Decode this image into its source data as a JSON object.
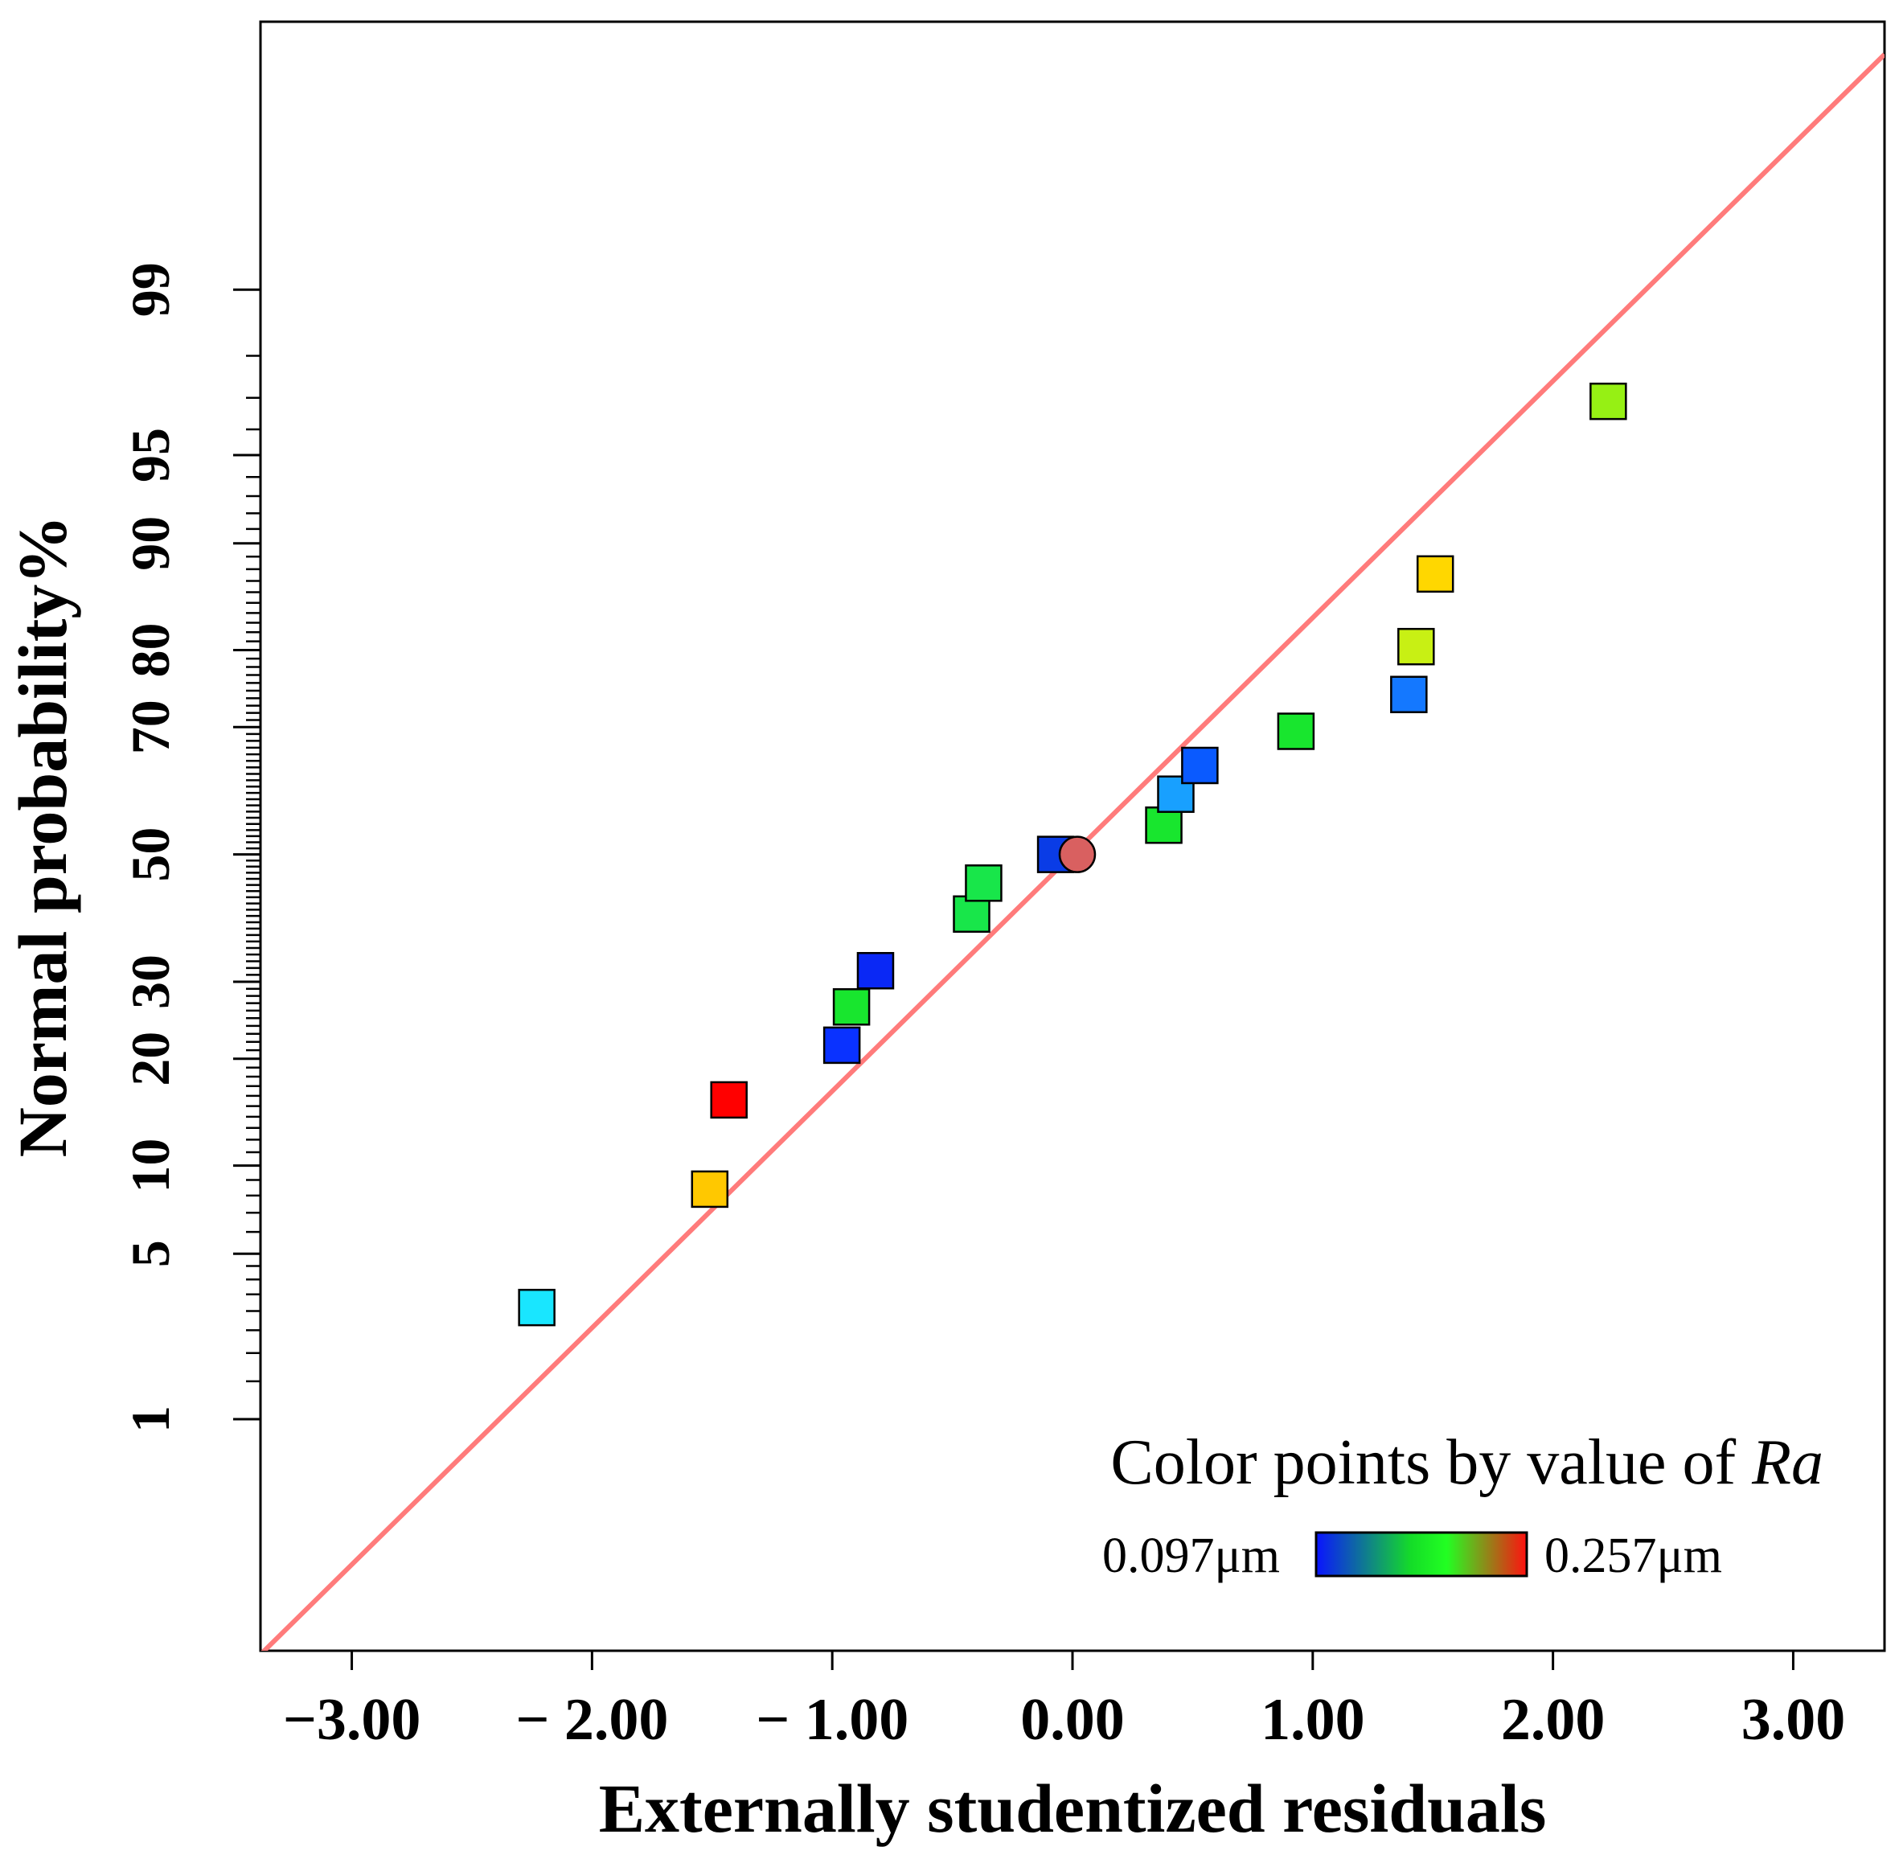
{
  "chart_data": {
    "type": "scatter",
    "title": "",
    "xlabel": "Externally studentized residuals",
    "ylabel": "Normal probability%",
    "xlim": [
      -3.38,
      3.38
    ],
    "ylim_probit": [
      -3.28,
      3.43
    ],
    "x_ticks": [
      {
        "value": -3,
        "label": "−3.00"
      },
      {
        "value": -2,
        "label": "− 2.00"
      },
      {
        "value": -1,
        "label": "− 1.00"
      },
      {
        "value": 0,
        "label": "0.00"
      },
      {
        "value": 1,
        "label": "1.00"
      },
      {
        "value": 2,
        "label": "2.00"
      },
      {
        "value": 3,
        "label": "3.00"
      }
    ],
    "y_ticks": [
      {
        "value": 1,
        "label": "1"
      },
      {
        "value": 5,
        "label": "5"
      },
      {
        "value": 10,
        "label": "10"
      },
      {
        "value": 20,
        "label": "20"
      },
      {
        "value": 30,
        "label": "30"
      },
      {
        "value": 50,
        "label": "50"
      },
      {
        "value": 70,
        "label": "70"
      },
      {
        "value": 80,
        "label": "80"
      },
      {
        "value": 90,
        "label": "90"
      },
      {
        "value": 95,
        "label": "95"
      },
      {
        "value": 99,
        "label": "99"
      }
    ],
    "fit_line": {
      "color": "#ff7b7b",
      "slope": 0.975,
      "intercept": 0.0
    },
    "points": [
      {
        "residual": -2.23,
        "probability": 3.1,
        "color": "#19e6ff",
        "shape": "square"
      },
      {
        "residual": -1.51,
        "probability": 8.4,
        "color": "#ffc800",
        "shape": "square"
      },
      {
        "residual": -1.43,
        "probability": 15.6,
        "color": "#ff0000",
        "shape": "square"
      },
      {
        "residual": -0.96,
        "probability": 21.6,
        "color": "#0a32ff",
        "shape": "square"
      },
      {
        "residual": -0.92,
        "probability": 26.5,
        "color": "#18e62e",
        "shape": "square"
      },
      {
        "residual": -0.82,
        "probability": 31.6,
        "color": "#0a28f5",
        "shape": "square"
      },
      {
        "residual": -0.42,
        "probability": 40.3,
        "color": "#18e64a",
        "shape": "square"
      },
      {
        "residual": -0.37,
        "probability": 45.3,
        "color": "#18e64a",
        "shape": "square"
      },
      {
        "residual": -0.07,
        "probability": 50.0,
        "color": "#0a3ce6",
        "shape": "square"
      },
      {
        "residual": 0.02,
        "probability": 50.0,
        "color": "#d96060",
        "shape": "circle"
      },
      {
        "residual": 0.38,
        "probability": 54.8,
        "color": "#18e62e",
        "shape": "square"
      },
      {
        "residual": 0.43,
        "probability": 59.8,
        "color": "#18a0ff",
        "shape": "square"
      },
      {
        "residual": 0.53,
        "probability": 64.3,
        "color": "#0a5aff",
        "shape": "square"
      },
      {
        "residual": 0.93,
        "probability": 69.4,
        "color": "#18e62e",
        "shape": "square"
      },
      {
        "residual": 1.4,
        "probability": 74.5,
        "color": "#1478ff",
        "shape": "square"
      },
      {
        "residual": 1.43,
        "probability": 80.4,
        "color": "#c8f014",
        "shape": "square"
      },
      {
        "residual": 1.51,
        "probability": 87.6,
        "color": "#ffd700",
        "shape": "square"
      },
      {
        "residual": 2.23,
        "probability": 96.9,
        "color": "#96f014",
        "shape": "square"
      }
    ],
    "legend": {
      "title": "Color points by value of ",
      "title_var": "Ra",
      "min_label": "0.097μm",
      "max_label": "0.257μm",
      "gradient": [
        "#0a14ff",
        "#14dc28",
        "#22ff22",
        "#ff1010"
      ],
      "position": "bottom-right"
    }
  }
}
